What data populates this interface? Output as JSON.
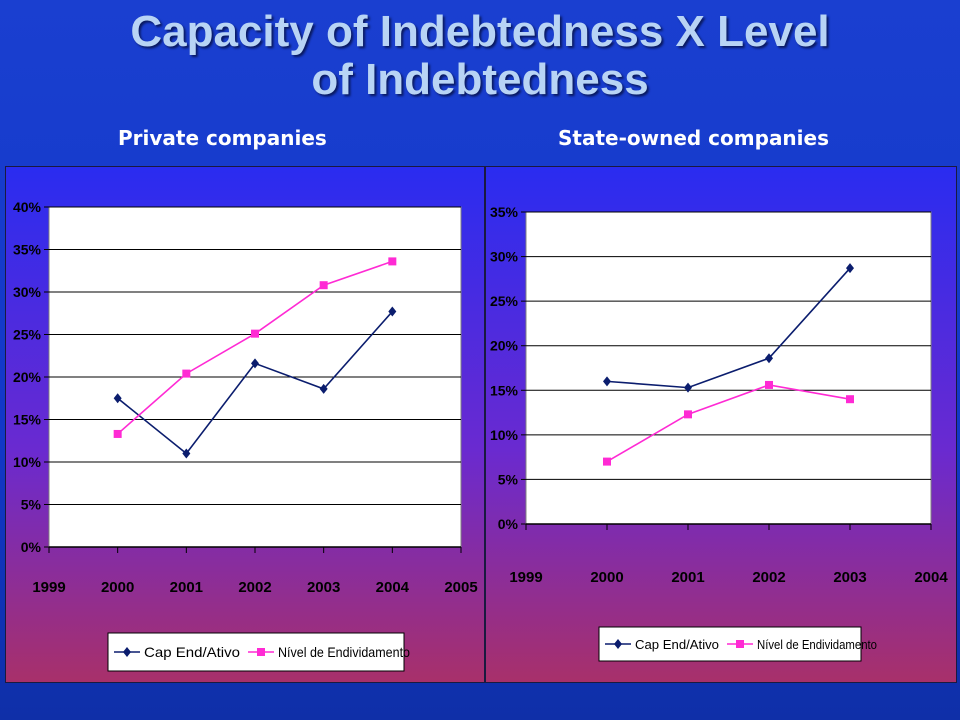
{
  "slide": {
    "title_line1": "Capacity of Indebtedness X Level",
    "title_line2": "of Indebtedness",
    "subtitle_left": "Private companies",
    "subtitle_right": "State-owned companies"
  },
  "colors": {
    "series_cap": "#0b1d6e",
    "series_nivel": "#ff2ad4"
  },
  "chart_data": [
    {
      "type": "line",
      "categories": [
        "1999",
        "2000",
        "2001",
        "2002",
        "2003",
        "2004",
        "2005"
      ],
      "yticks": [
        "0%",
        "5%",
        "10%",
        "15%",
        "20%",
        "25%",
        "30%",
        "35%",
        "40%"
      ],
      "ylim": [
        0,
        40
      ],
      "grid": true,
      "legend": "bottom",
      "series": [
        {
          "name": "Cap End/Ativo",
          "values": [
            null,
            17.5,
            11.0,
            21.6,
            18.6,
            27.7,
            null
          ]
        },
        {
          "name": "Nível de Endividamento",
          "values": [
            null,
            13.3,
            20.4,
            25.1,
            30.8,
            33.6,
            null
          ]
        }
      ]
    },
    {
      "type": "line",
      "categories": [
        "1999",
        "2000",
        "2001",
        "2002",
        "2003",
        "2004"
      ],
      "yticks": [
        "0%",
        "5%",
        "10%",
        "15%",
        "20%",
        "25%",
        "30%",
        "35%"
      ],
      "ylim": [
        0,
        35
      ],
      "grid": true,
      "legend": "bottom",
      "series": [
        {
          "name": "Cap End/Ativo",
          "values": [
            null,
            16.0,
            15.3,
            18.6,
            28.7,
            null
          ]
        },
        {
          "name": "Nível de Endividamento",
          "values": [
            null,
            7.0,
            12.3,
            15.6,
            14.0,
            null
          ]
        }
      ]
    }
  ]
}
